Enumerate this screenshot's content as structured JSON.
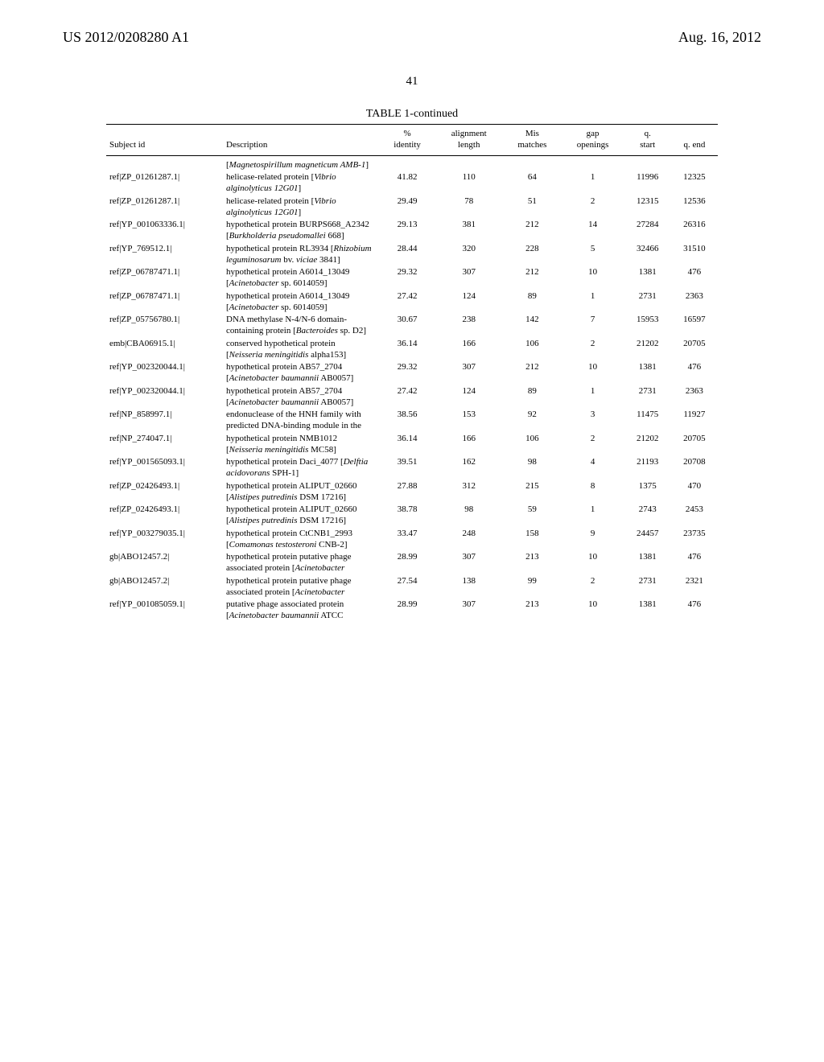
{
  "header": {
    "left": "US 2012/0208280 A1",
    "right": "Aug. 16, 2012",
    "page": "41",
    "table_title": "TABLE 1-continued"
  },
  "columns": [
    "Subject id",
    "Description",
    "% identity",
    "alignment length",
    "Mis matches",
    "gap openings",
    "q. start",
    "q. end"
  ],
  "lead_desc": "[<em>Magnetospirillum magneticum AMB-1</em>]",
  "rows": [
    {
      "subj": "ref|ZP_01261287.1|",
      "desc": "helicase-related protein [<em>Vibrio alginolyticus 12G01</em>]",
      "v": [
        "41.82",
        "110",
        "64",
        "1",
        "11996",
        "12325"
      ]
    },
    {
      "subj": "ref|ZP_01261287.1|",
      "desc": "helicase-related protein [<em>Vibrio alginolyticus 12G01</em>]",
      "v": [
        "29.49",
        "78",
        "51",
        "2",
        "12315",
        "12536"
      ]
    },
    {
      "subj": "ref|YP_001063336.1|",
      "desc": "hypothetical protein BURPS668_A2342 [<em>Burkholderia pseudomallei</em> 668]",
      "v": [
        "29.13",
        "381",
        "212",
        "14",
        "27284",
        "26316"
      ]
    },
    {
      "subj": "ref|YP_769512.1|",
      "desc": "hypothetical protein RL3934 [<em>Rhizobium leguminosarum</em> bv. <em>viciae</em> 3841]",
      "v": [
        "28.44",
        "320",
        "228",
        "5",
        "32466",
        "31510"
      ]
    },
    {
      "subj": "ref|ZP_06787471.1|",
      "desc": "hypothetical protein A6014_13049 [<em>Acinetobacter</em> sp. 6014059]",
      "v": [
        "29.32",
        "307",
        "212",
        "10",
        "1381",
        "476"
      ]
    },
    {
      "subj": "ref|ZP_06787471.1|",
      "desc": "hypothetical protein A6014_13049 [<em>Acinetobacter</em> sp. 6014059]",
      "v": [
        "27.42",
        "124",
        "89",
        "1",
        "2731",
        "2363"
      ]
    },
    {
      "subj": "ref|ZP_05756780.1|",
      "desc": "DNA methylase N-4/N-6 domain-containing protein [<em>Bacteroides</em> sp. D2]",
      "v": [
        "30.67",
        "238",
        "142",
        "7",
        "15953",
        "16597"
      ]
    },
    {
      "subj": "emb|CBA06915.1|",
      "desc": "conserved hypothetical protein [<em>Neisseria meningitidis</em> alpha153]",
      "v": [
        "36.14",
        "166",
        "106",
        "2",
        "21202",
        "20705"
      ]
    },
    {
      "subj": "ref|YP_002320044.1|",
      "desc": "hypothetical protein AB57_2704 [<em>Acinetobacter baumannii</em> AB0057]",
      "v": [
        "29.32",
        "307",
        "212",
        "10",
        "1381",
        "476"
      ]
    },
    {
      "subj": "ref|YP_002320044.1|",
      "desc": "hypothetical protein AB57_2704 [<em>Acinetobacter baumannii</em> AB0057]",
      "v": [
        "27.42",
        "124",
        "89",
        "1",
        "2731",
        "2363"
      ]
    },
    {
      "subj": "ref|NP_858997.1|",
      "desc": "endonuclease of the HNH family with predicted DNA-binding module in the",
      "v": [
        "38.56",
        "153",
        "92",
        "3",
        "11475",
        "11927"
      ]
    },
    {
      "subj": "ref|NP_274047.1|",
      "desc": "hypothetical protein NMB1012 [<em>Neisseria meningitidis</em> MC58]",
      "v": [
        "36.14",
        "166",
        "106",
        "2",
        "21202",
        "20705"
      ]
    },
    {
      "subj": "ref|YP_001565093.1|",
      "desc": "hypothetical protein Daci_4077 [<em>Delftia acidovorans</em> SPH-1]",
      "v": [
        "39.51",
        "162",
        "98",
        "4",
        "21193",
        "20708"
      ]
    },
    {
      "subj": "ref|ZP_02426493.1|",
      "desc": "hypothetical protein ALIPUT_02660 [<em>Alistipes putredinis</em> DSM 17216]",
      "v": [
        "27.88",
        "312",
        "215",
        "8",
        "1375",
        "470"
      ]
    },
    {
      "subj": "ref|ZP_02426493.1|",
      "desc": "hypothetical protein ALIPUT_02660 [<em>Alistipes putredinis</em> DSM 17216]",
      "v": [
        "38.78",
        "98",
        "59",
        "1",
        "2743",
        "2453"
      ]
    },
    {
      "subj": "ref|YP_003279035.1|",
      "desc": "hypothetical protein CtCNB1_2993 [<em>Comamonas testosteroni</em> CNB-2]",
      "v": [
        "33.47",
        "248",
        "158",
        "9",
        "24457",
        "23735"
      ]
    },
    {
      "subj": "gb|ABO12457.2|",
      "desc": "hypothetical protein putative phage associated protein [<em>Acinetobacter</em>",
      "v": [
        "28.99",
        "307",
        "213",
        "10",
        "1381",
        "476"
      ]
    },
    {
      "subj": "gb|ABO12457.2|",
      "desc": "hypothetical protein putative phage associated protein [<em>Acinetobacter</em>",
      "v": [
        "27.54",
        "138",
        "99",
        "2",
        "2731",
        "2321"
      ]
    },
    {
      "subj": "ref|YP_001085059.1|",
      "desc": "putative phage associated protein [<em>Acinetobacter baumannii</em> ATCC",
      "v": [
        "28.99",
        "307",
        "213",
        "10",
        "1381",
        "476"
      ]
    }
  ]
}
